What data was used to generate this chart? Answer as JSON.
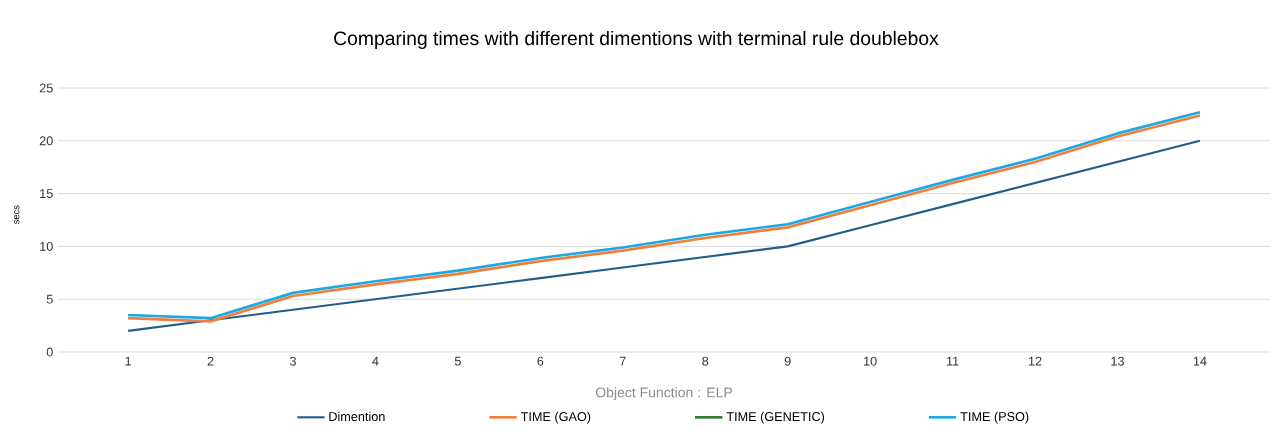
{
  "chart_data": {
    "type": "line",
    "title": "Comparing  times with different dimentions with terminal rule doublebox",
    "xlabel": "Object  Function : ELP",
    "ylabel": "secs",
    "categories": [
      "1",
      "2",
      "3",
      "4",
      "5",
      "6",
      "7",
      "8",
      "9",
      "10",
      "11",
      "12",
      "13",
      "14"
    ],
    "series": [
      {
        "name": "Dimention",
        "color": "#215f8a",
        "values": [
          2,
          3,
          4,
          5,
          6,
          7,
          8,
          9,
          10,
          12,
          14,
          16,
          18,
          20
        ]
      },
      {
        "name": "TIME (GAO)",
        "color": "#f07f3c",
        "values": [
          3.2,
          2.9,
          5.3,
          6.4,
          7.4,
          8.6,
          9.6,
          10.8,
          11.8,
          13.9,
          16.0,
          18.0,
          20.4,
          22.4
        ]
      },
      {
        "name": "TIME (GENETIC)",
        "color": "#2e7d32",
        "values": [
          null,
          null,
          null,
          null,
          null,
          null,
          null,
          null,
          null,
          null,
          null,
          null,
          null,
          null
        ]
      },
      {
        "name": "TIME (PSO)",
        "color": "#1ea7e1",
        "values": [
          3.5,
          3.2,
          5.6,
          6.7,
          7.7,
          8.9,
          9.9,
          11.1,
          12.1,
          14.2,
          16.3,
          18.3,
          20.7,
          22.7
        ]
      }
    ],
    "ylim": [
      0,
      25
    ],
    "yticks": [
      0,
      5,
      10,
      15,
      20,
      25
    ],
    "grid": "y",
    "legend": "bottom",
    "marker": "none",
    "line_style": "solid"
  }
}
